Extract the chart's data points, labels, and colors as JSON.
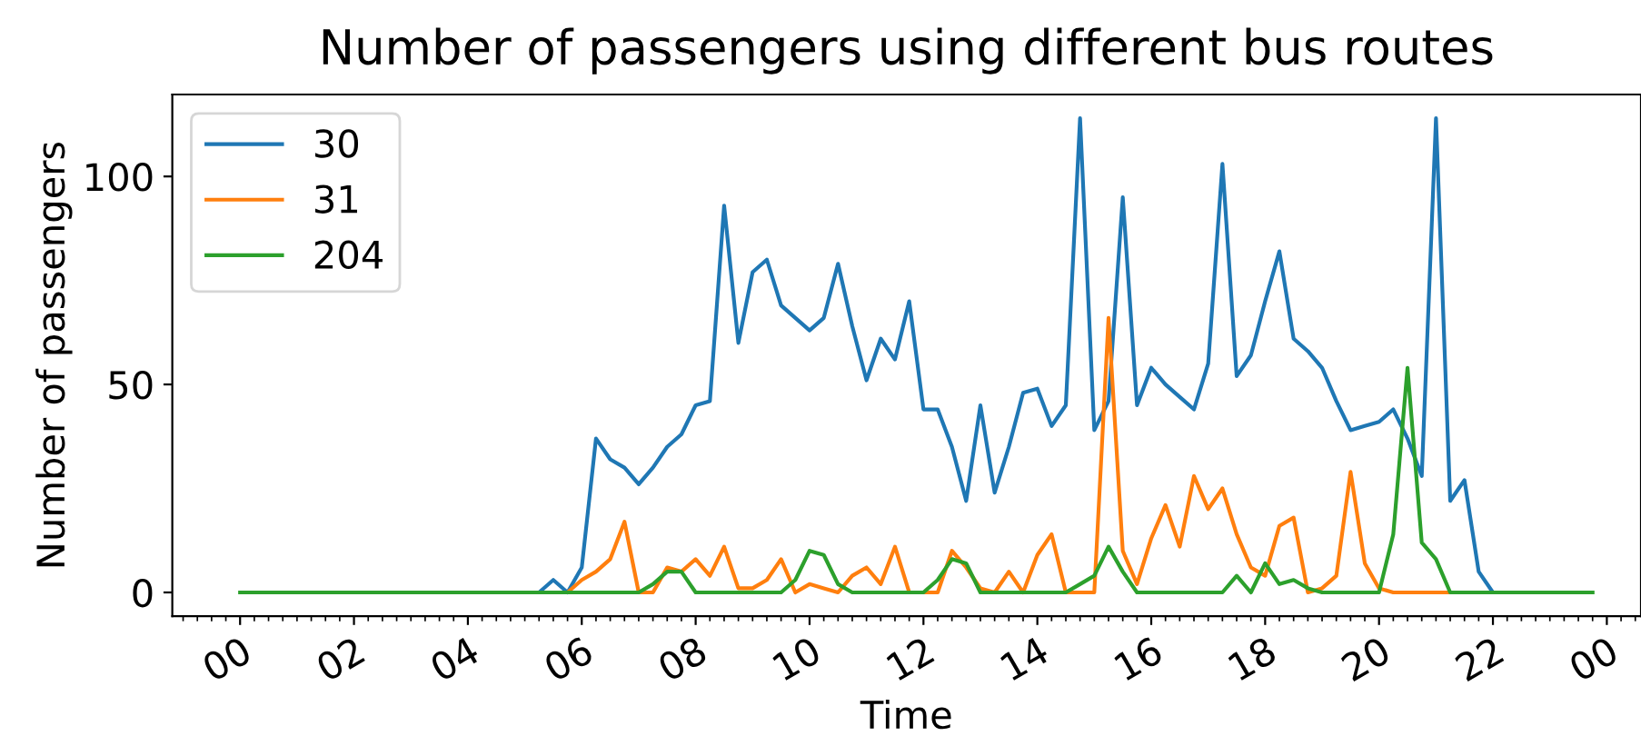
{
  "chart_data": {
    "type": "line",
    "title": "Number of passengers using different bus routes",
    "xlabel": "Time",
    "ylabel": "Number of passengers",
    "x": [
      0,
      0.25,
      0.5,
      0.75,
      1,
      1.25,
      1.5,
      1.75,
      2,
      2.25,
      2.5,
      2.75,
      3,
      3.25,
      3.5,
      3.75,
      4,
      4.25,
      4.5,
      4.75,
      5,
      5.25,
      5.5,
      5.75,
      6,
      6.25,
      6.5,
      6.75,
      7,
      7.25,
      7.5,
      7.75,
      8,
      8.25,
      8.5,
      8.75,
      9,
      9.25,
      9.5,
      9.75,
      10,
      10.25,
      10.5,
      10.75,
      11,
      11.25,
      11.5,
      11.75,
      12,
      12.25,
      12.5,
      12.75,
      13,
      13.25,
      13.5,
      13.75,
      14,
      14.25,
      14.5,
      14.75,
      15,
      15.25,
      15.5,
      15.75,
      16,
      16.25,
      16.5,
      16.75,
      17,
      17.25,
      17.5,
      17.75,
      18,
      18.25,
      18.5,
      18.75,
      19,
      19.25,
      19.5,
      19.75,
      20,
      20.25,
      20.5,
      20.75,
      21,
      21.25,
      21.5,
      21.75,
      22,
      22.25,
      22.5,
      22.75,
      23,
      23.25,
      23.5,
      23.75
    ],
    "series": [
      {
        "name": "30",
        "color": "#1f77b4",
        "values": [
          null,
          null,
          null,
          null,
          null,
          null,
          null,
          null,
          null,
          null,
          null,
          null,
          null,
          null,
          null,
          null,
          null,
          null,
          null,
          null,
          0,
          0,
          3,
          0,
          6,
          37,
          32,
          30,
          26,
          30,
          35,
          38,
          45,
          46,
          93,
          60,
          77,
          80,
          69,
          66,
          63,
          66,
          79,
          64,
          51,
          61,
          56,
          70,
          44,
          44,
          35,
          22,
          45,
          24,
          35,
          48,
          49,
          40,
          45,
          114,
          39,
          46,
          95,
          45,
          54,
          50,
          47,
          44,
          55,
          103,
          52,
          57,
          70,
          82,
          61,
          58,
          54,
          46,
          39,
          40,
          41,
          44,
          37,
          28,
          114,
          22,
          27,
          5,
          0,
          0,
          null,
          null,
          null,
          null,
          null,
          null
        ]
      },
      {
        "name": "31",
        "color": "#ff7f0e",
        "values": [
          null,
          null,
          null,
          null,
          null,
          null,
          null,
          null,
          null,
          null,
          null,
          null,
          null,
          null,
          null,
          null,
          null,
          null,
          null,
          null,
          null,
          null,
          0,
          0,
          3,
          5,
          8,
          17,
          0,
          0,
          6,
          5,
          8,
          4,
          11,
          1,
          1,
          3,
          8,
          0,
          2,
          1,
          0,
          4,
          6,
          2,
          11,
          0,
          0,
          0,
          10,
          6,
          1,
          0,
          5,
          0,
          9,
          14,
          0,
          0,
          0,
          66,
          10,
          2,
          13,
          21,
          11,
          28,
          20,
          25,
          14,
          6,
          4,
          16,
          18,
          0,
          1,
          4,
          29,
          7,
          1,
          0,
          0,
          0,
          0,
          0,
          0,
          null,
          null,
          null,
          null,
          null,
          null,
          null,
          null,
          null
        ]
      },
      {
        "name": "204",
        "color": "#2ca02c",
        "values": [
          0,
          0,
          0,
          0,
          0,
          0,
          0,
          0,
          0,
          0,
          0,
          0,
          0,
          0,
          0,
          0,
          0,
          0,
          0,
          0,
          0,
          0,
          0,
          0,
          0,
          0,
          0,
          0,
          0,
          2,
          5,
          5,
          0,
          0,
          0,
          0,
          0,
          0,
          0,
          3,
          10,
          9,
          2,
          0,
          0,
          0,
          0,
          0,
          0,
          3,
          8,
          7,
          0,
          0,
          0,
          0,
          0,
          0,
          0,
          2,
          4,
          11,
          5,
          0,
          0,
          0,
          0,
          0,
          0,
          0,
          4,
          0,
          7,
          2,
          3,
          1,
          0,
          0,
          0,
          0,
          0,
          14,
          54,
          12,
          8,
          0,
          0,
          0,
          0,
          0,
          0,
          0,
          0,
          0,
          0,
          0
        ]
      }
    ],
    "xlim": [
      -1.19,
      24.6
    ],
    "xticks": [
      {
        "value": 0,
        "label": "00"
      },
      {
        "value": 2,
        "label": "02"
      },
      {
        "value": 4,
        "label": "04"
      },
      {
        "value": 6,
        "label": "06"
      },
      {
        "value": 8,
        "label": "08"
      },
      {
        "value": 10,
        "label": "10"
      },
      {
        "value": 12,
        "label": "12"
      },
      {
        "value": 14,
        "label": "14"
      },
      {
        "value": 16,
        "label": "16"
      },
      {
        "value": 18,
        "label": "18"
      },
      {
        "value": 20,
        "label": "20"
      },
      {
        "value": 22,
        "label": "22"
      },
      {
        "value": 24,
        "label": "00"
      }
    ],
    "ylim": [
      -5.7,
      119.7
    ],
    "yticks": [
      0,
      50,
      100
    ],
    "grid": false,
    "legend": "top left",
    "marker": "none",
    "line_style": "solid"
  }
}
